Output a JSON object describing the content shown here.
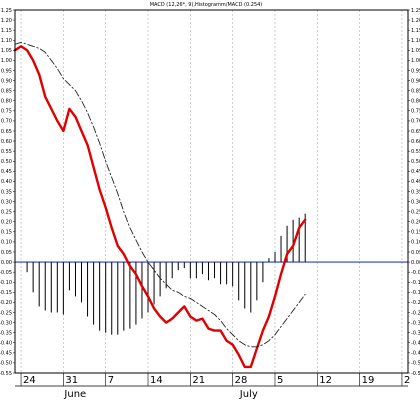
{
  "chart_data": {
    "type": "line",
    "title": "MACD (12,26*, 9),Histogramm/MACD (0.254)",
    "ylim": [
      -0.55,
      1.25
    ],
    "y_ticks": [
      1.25,
      1.2,
      1.15,
      1.1,
      1.05,
      1.0,
      0.95,
      0.9,
      0.85,
      0.8,
      0.75,
      0.7,
      0.65,
      0.6,
      0.55,
      0.5,
      0.45,
      0.4,
      0.35,
      0.3,
      0.25,
      0.2,
      0.15,
      0.1,
      0.05,
      0.0,
      -0.05,
      -0.1,
      -0.15,
      -0.2,
      -0.25,
      -0.3,
      -0.35,
      -0.4,
      -0.45,
      -0.5,
      -0.55
    ],
    "y_tick_labels": [
      "1.25",
      "1.20",
      "1.15",
      "1.10",
      "1.05",
      "1.00",
      "0.95",
      "0.90",
      "0.85",
      "0.80",
      "0.75",
      "0.70",
      "0.65",
      "0.60",
      "0.55",
      "0.50",
      "0.45",
      "0.40",
      "0.35",
      "0.30",
      "0.25",
      "0.20",
      "0.15",
      "0.10",
      "0.05",
      "0.00",
      "-0.05",
      "-0.10",
      "-0.15",
      "-0.20",
      "-0.25",
      "-0.30",
      "-0.35",
      "-0.40",
      "-0.45",
      "-0.50",
      "-0.55"
    ],
    "x_ticks": [
      {
        "label": "24",
        "day": 0
      },
      {
        "label": "31",
        "day": 7
      },
      {
        "label": "7",
        "day": 14
      },
      {
        "label": "14",
        "day": 21
      },
      {
        "label": "21",
        "day": 28
      },
      {
        "label": "28",
        "day": 35
      },
      {
        "label": "5",
        "day": 42
      },
      {
        "label": "12",
        "day": 49
      },
      {
        "label": "19",
        "day": 56
      },
      {
        "label": "2",
        "day": 63
      }
    ],
    "x_range": [
      -1,
      64
    ],
    "months": [
      {
        "label": "June",
        "day": 8
      },
      {
        "label": "July",
        "day": 37
      }
    ],
    "zero_line": 0.0,
    "grid": "vertical dashed",
    "series": [
      {
        "role": "macd",
        "color": "#e00000",
        "style": "solid",
        "points": [
          [
            -1,
            1.05
          ],
          [
            0,
            1.07
          ],
          [
            1,
            1.05
          ],
          [
            2,
            1.0
          ],
          [
            3,
            0.93
          ],
          [
            4,
            0.82
          ],
          [
            5,
            0.76
          ],
          [
            6,
            0.7
          ],
          [
            7,
            0.65
          ],
          [
            8,
            0.76
          ],
          [
            9,
            0.72
          ],
          [
            10,
            0.65
          ],
          [
            11,
            0.58
          ],
          [
            12,
            0.47
          ],
          [
            13,
            0.36
          ],
          [
            14,
            0.27
          ],
          [
            15,
            0.17
          ],
          [
            16,
            0.08
          ],
          [
            17,
            0.04
          ],
          [
            18,
            -0.02
          ],
          [
            19,
            -0.06
          ],
          [
            20,
            -0.12
          ],
          [
            21,
            -0.17
          ],
          [
            22,
            -0.23
          ],
          [
            23,
            -0.27
          ],
          [
            24,
            -0.3
          ],
          [
            25,
            -0.28
          ],
          [
            26,
            -0.25
          ],
          [
            27,
            -0.22
          ],
          [
            28,
            -0.27
          ],
          [
            29,
            -0.29
          ],
          [
            30,
            -0.28
          ],
          [
            31,
            -0.33
          ],
          [
            32,
            -0.34
          ],
          [
            33,
            -0.34
          ],
          [
            34,
            -0.39
          ],
          [
            35,
            -0.41
          ],
          [
            36,
            -0.46
          ],
          [
            37,
            -0.52
          ],
          [
            38,
            -0.52
          ],
          [
            39,
            -0.43
          ],
          [
            40,
            -0.34
          ],
          [
            41,
            -0.27
          ],
          [
            42,
            -0.17
          ],
          [
            43,
            -0.06
          ],
          [
            44,
            0.04
          ],
          [
            45,
            0.08
          ],
          [
            46,
            0.17
          ],
          [
            47,
            0.21
          ]
        ]
      },
      {
        "role": "signal",
        "color": "#222222",
        "style": "dashed",
        "points": [
          [
            -1,
            1.08
          ],
          [
            0,
            1.09
          ],
          [
            1,
            1.08
          ],
          [
            2,
            1.07
          ],
          [
            3,
            1.06
          ],
          [
            4,
            1.04
          ],
          [
            5,
            1.0
          ],
          [
            6,
            0.96
          ],
          [
            7,
            0.91
          ],
          [
            8,
            0.88
          ],
          [
            9,
            0.85
          ],
          [
            10,
            0.8
          ],
          [
            11,
            0.74
          ],
          [
            12,
            0.67
          ],
          [
            13,
            0.59
          ],
          [
            14,
            0.5
          ],
          [
            15,
            0.42
          ],
          [
            16,
            0.34
          ],
          [
            17,
            0.25
          ],
          [
            18,
            0.17
          ],
          [
            19,
            0.11
          ],
          [
            20,
            0.05
          ],
          [
            21,
            0.0
          ],
          [
            22,
            -0.04
          ],
          [
            23,
            -0.08
          ],
          [
            24,
            -0.11
          ],
          [
            25,
            -0.14
          ],
          [
            26,
            -0.15
          ],
          [
            27,
            -0.17
          ],
          [
            28,
            -0.18
          ],
          [
            29,
            -0.2
          ],
          [
            30,
            -0.22
          ],
          [
            31,
            -0.24
          ],
          [
            32,
            -0.26
          ],
          [
            33,
            -0.29
          ],
          [
            34,
            -0.33
          ],
          [
            35,
            -0.36
          ],
          [
            36,
            -0.39
          ],
          [
            37,
            -0.41
          ],
          [
            38,
            -0.42
          ],
          [
            39,
            -0.42
          ],
          [
            40,
            -0.41
          ],
          [
            41,
            -0.39
          ],
          [
            42,
            -0.36
          ],
          [
            43,
            -0.32
          ],
          [
            44,
            -0.28
          ],
          [
            45,
            -0.24
          ],
          [
            46,
            -0.2
          ],
          [
            47,
            -0.16
          ]
        ]
      },
      {
        "role": "histogram",
        "color": "#000000",
        "style": "bars",
        "points": [
          [
            1,
            -0.05
          ],
          [
            2,
            -0.15
          ],
          [
            3,
            -0.22
          ],
          [
            4,
            -0.24
          ],
          [
            5,
            -0.25
          ],
          [
            6,
            -0.25
          ],
          [
            7,
            -0.26
          ],
          [
            8,
            -0.14
          ],
          [
            9,
            -0.17
          ],
          [
            10,
            -0.2
          ],
          [
            11,
            -0.27
          ],
          [
            12,
            -0.31
          ],
          [
            13,
            -0.34
          ],
          [
            14,
            -0.35
          ],
          [
            15,
            -0.36
          ],
          [
            16,
            -0.36
          ],
          [
            17,
            -0.34
          ],
          [
            18,
            -0.33
          ],
          [
            19,
            -0.31
          ],
          [
            20,
            -0.28
          ],
          [
            21,
            -0.25
          ],
          [
            22,
            -0.21
          ],
          [
            23,
            -0.17
          ],
          [
            24,
            -0.13
          ],
          [
            25,
            -0.08
          ],
          [
            26,
            -0.04
          ],
          [
            27,
            -0.03
          ],
          [
            28,
            -0.08
          ],
          [
            29,
            -0.08
          ],
          [
            30,
            -0.06
          ],
          [
            31,
            -0.09
          ],
          [
            32,
            -0.08
          ],
          [
            33,
            -0.11
          ],
          [
            34,
            -0.11
          ],
          [
            35,
            -0.12
          ],
          [
            36,
            -0.19
          ],
          [
            37,
            -0.23
          ],
          [
            38,
            -0.25
          ],
          [
            39,
            -0.19
          ],
          [
            40,
            -0.1
          ],
          [
            41,
            0.02
          ],
          [
            42,
            0.05
          ],
          [
            43,
            0.13
          ],
          [
            44,
            0.18
          ],
          [
            45,
            0.21
          ],
          [
            46,
            0.22
          ],
          [
            47,
            0.24
          ]
        ]
      }
    ],
    "colors": {
      "zero_line": "#2b3fbf",
      "grid": "#b8b8b8",
      "axis": "#000000"
    }
  }
}
